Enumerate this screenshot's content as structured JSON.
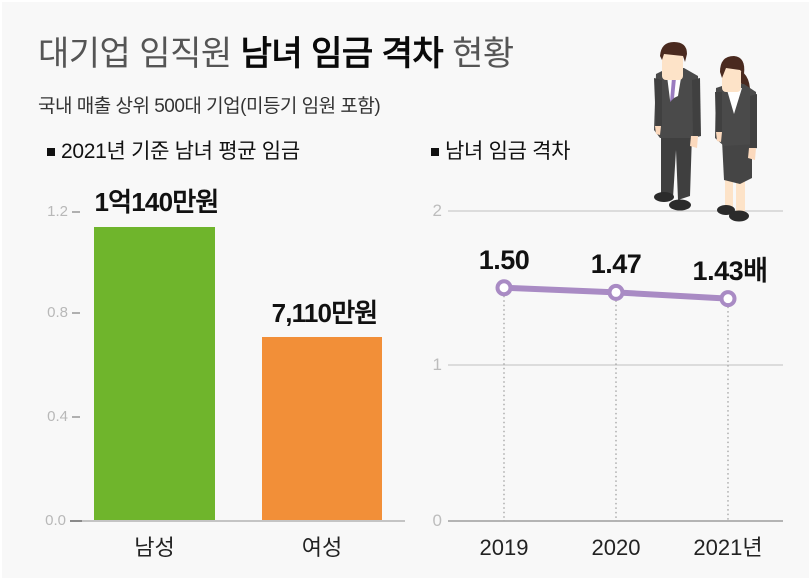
{
  "title": {
    "prefix": "대기업 임직원",
    "highlight": "남녀 임금 격차",
    "suffix": "현황"
  },
  "subtitle": "국내 매출 상위 500대 기업(미등기 임원 포함)",
  "left_section": {
    "bullet_icon": "square-bullet",
    "title": "2021년 기준 남녀 평균 임금"
  },
  "right_section": {
    "bullet_icon": "square-bullet",
    "title": "남녀 임금 격차"
  },
  "colors": {
    "background": "#f8f8f8",
    "male_bar": "#6fb52c",
    "female_bar": "#f28f38",
    "gap_line": "#a98bc4",
    "axis_label": "#b8b8b8"
  },
  "illustration": {
    "figures": [
      "businessman",
      "businesswoman"
    ]
  },
  "chart_data": [
    {
      "type": "bar",
      "title": "2021년 기준 남녀 평균 임금",
      "categories": [
        "남성",
        "여성"
      ],
      "values": [
        1.014,
        0.711
      ],
      "value_labels": [
        "1억140만원",
        "7,110만원"
      ],
      "unit": "억원",
      "yticks": [
        "1.2",
        "0.8",
        "0.4",
        "0.0"
      ],
      "ylim": [
        0,
        1.2
      ],
      "grid": false,
      "colors": [
        "#6fb52c",
        "#f28f38"
      ],
      "xlabel": "",
      "ylabel": ""
    },
    {
      "type": "line",
      "title": "남녀 임금 격차",
      "categories": [
        "2019",
        "2020",
        "2021년"
      ],
      "values": [
        1.5,
        1.47,
        1.43
      ],
      "value_labels": [
        "1.50",
        "1.47",
        "1.43배"
      ],
      "unit": "배",
      "yticks": [
        "2",
        "1",
        "0"
      ],
      "ylim": [
        0,
        2
      ],
      "grid": true,
      "color": "#a98bc4",
      "xlabel": "",
      "ylabel": ""
    }
  ]
}
